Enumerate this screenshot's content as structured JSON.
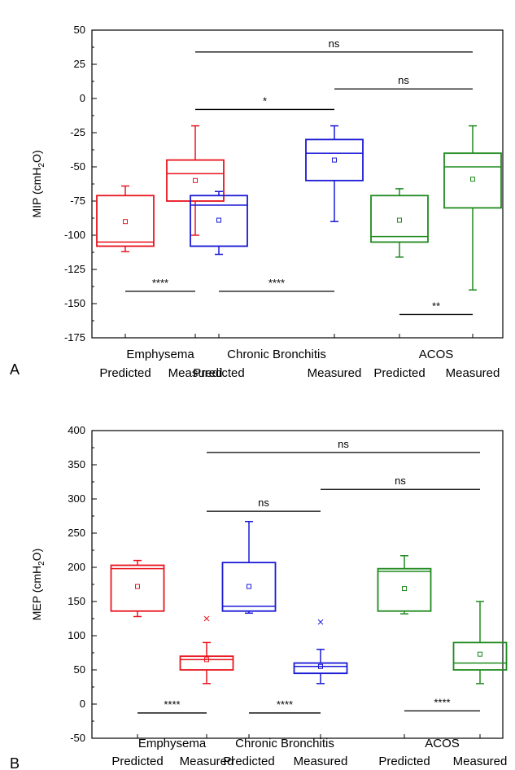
{
  "chart_data": [
    {
      "type": "box",
      "panel_label": "A",
      "ylabel": "MIP (cmH",
      "ylabel_sub": "2",
      "ylabel_end": "O)",
      "ylim": [
        -175,
        50
      ],
      "yticks": [
        50,
        25,
        0,
        -25,
        -50,
        -75,
        -100,
        -125,
        -150,
        -175
      ],
      "groups": [
        {
          "name": "Emphysema",
          "color": "#e8141e"
        },
        {
          "name": "Chronic Bronchitis",
          "color": "#1a1ad6"
        },
        {
          "name": "ACOS",
          "color": "#1e8a1e"
        }
      ],
      "categories": [
        "Predicted",
        "Measured",
        "Predicted",
        "Measured",
        "Predicted",
        "Measured"
      ],
      "boxes": [
        {
          "group": 0,
          "whisker_low": -112,
          "q1": -108,
          "median": -105,
          "q3": -71,
          "whisker_high": -64,
          "mean": -90,
          "outliers": []
        },
        {
          "group": 0,
          "whisker_low": -100,
          "q1": -75,
          "median": -55,
          "q3": -45,
          "whisker_high": -20,
          "mean": -60,
          "outliers": []
        },
        {
          "group": 1,
          "whisker_low": -114,
          "q1": -108,
          "median": -78,
          "q3": -71,
          "whisker_high": -68,
          "mean": -89,
          "outliers": []
        },
        {
          "group": 1,
          "whisker_low": -90,
          "q1": -60,
          "median": -40,
          "q3": -30,
          "whisker_high": -20,
          "mean": -45,
          "outliers": []
        },
        {
          "group": 2,
          "whisker_low": -116,
          "q1": -105,
          "median": -101,
          "q3": -71,
          "whisker_high": -66,
          "mean": -89,
          "outliers": []
        },
        {
          "group": 2,
          "whisker_low": -140,
          "q1": -80,
          "median": -50,
          "q3": -40,
          "whisker_high": -20,
          "mean": -59,
          "outliers": []
        }
      ],
      "significance": [
        {
          "from": 0,
          "to": 1,
          "y": -141,
          "label": "****"
        },
        {
          "from": 2,
          "to": 3,
          "y": -141,
          "label": "****"
        },
        {
          "from": 4,
          "to": 5,
          "y": -158,
          "label": "**"
        },
        {
          "from": 1,
          "to": 3,
          "y": -8,
          "label": "*"
        },
        {
          "from": 3,
          "to": 5,
          "y": 7,
          "label": "ns"
        },
        {
          "from": 1,
          "to": 5,
          "y": 34,
          "label": "ns"
        }
      ]
    },
    {
      "type": "box",
      "panel_label": "B",
      "ylabel": "MEP (cmH",
      "ylabel_sub": "2",
      "ylabel_end": "O)",
      "ylim": [
        -50,
        400
      ],
      "yticks": [
        400,
        350,
        300,
        250,
        200,
        150,
        100,
        50,
        0,
        -50
      ],
      "groups": [
        {
          "name": "Emphysema",
          "color": "#e8141e"
        },
        {
          "name": "Chronic Bronchitis",
          "color": "#1a1ad6"
        },
        {
          "name": "ACOS",
          "color": "#1e8a1e"
        }
      ],
      "categories": [
        "Predicted",
        "Measured",
        "Predicted",
        "Measured",
        "Predicted",
        "Measured"
      ],
      "boxes": [
        {
          "group": 0,
          "whisker_low": 128,
          "q1": 136,
          "median": 198,
          "q3": 203,
          "whisker_high": 210,
          "mean": 172,
          "outliers": []
        },
        {
          "group": 0,
          "whisker_low": 30,
          "q1": 50,
          "median": 65,
          "q3": 70,
          "whisker_high": 90,
          "mean": 65,
          "outliers": [
            125
          ]
        },
        {
          "group": 1,
          "whisker_low": 133,
          "q1": 136,
          "median": 143,
          "q3": 207,
          "whisker_high": 267,
          "mean": 172,
          "outliers": []
        },
        {
          "group": 1,
          "whisker_low": 30,
          "q1": 45,
          "median": 55,
          "q3": 60,
          "whisker_high": 80,
          "mean": 55,
          "outliers": [
            120
          ]
        },
        {
          "group": 2,
          "whisker_low": 132,
          "q1": 136,
          "median": 194,
          "q3": 198,
          "whisker_high": 217,
          "mean": 169,
          "outliers": []
        },
        {
          "group": 2,
          "whisker_low": 30,
          "q1": 50,
          "median": 60,
          "q3": 90,
          "whisker_high": 150,
          "mean": 73,
          "outliers": []
        }
      ],
      "significance": [
        {
          "from": 0,
          "to": 1,
          "y": -13,
          "label": "****"
        },
        {
          "from": 2,
          "to": 3,
          "y": -13,
          "label": "****"
        },
        {
          "from": 4,
          "to": 5,
          "y": -10,
          "label": "****"
        },
        {
          "from": 1,
          "to": 3,
          "y": 282,
          "label": "ns"
        },
        {
          "from": 3,
          "to": 5,
          "y": 314,
          "label": "ns"
        },
        {
          "from": 1,
          "to": 5,
          "y": 368,
          "label": "ns"
        }
      ]
    }
  ]
}
